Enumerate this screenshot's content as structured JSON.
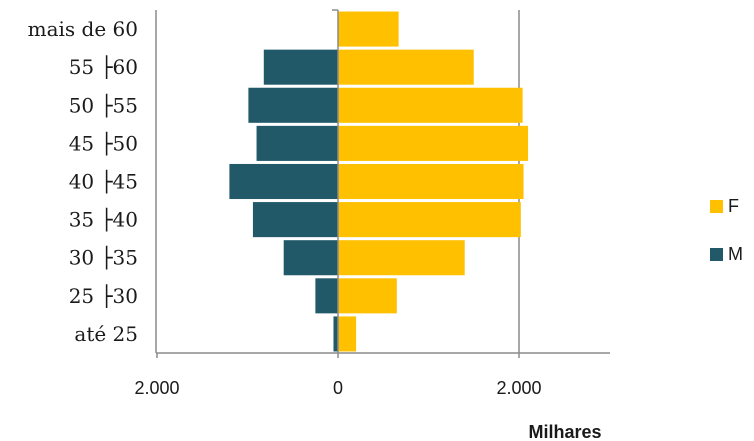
{
  "chart_data": {
    "type": "bar",
    "orientation": "horizontal",
    "categories": [
      "até 25",
      "25 ├30",
      "30 ├35",
      "35 ├40",
      "40 ├45",
      "45 ├50",
      "50 ├55",
      "55 ├60",
      "mais de 60"
    ],
    "series": [
      {
        "name": "F",
        "color": "#FFC000",
        "values": [
          200,
          650,
          1400,
          2020,
          2050,
          2100,
          2040,
          1500,
          670
        ]
      },
      {
        "name": "M",
        "color": "#215968",
        "values": [
          -50,
          -250,
          -600,
          -940,
          -1200,
          -900,
          -990,
          -820,
          0
        ]
      }
    ],
    "xlabel": "Milhares",
    "ylabel": "",
    "xlim": [
      -2000,
      3000
    ],
    "xticks": [
      -2000,
      0,
      2000
    ],
    "xtick_labels": [
      "2.000",
      "0",
      "2.000"
    ],
    "grid": "vertical",
    "legend": {
      "position": "right",
      "entries": [
        "F",
        "M"
      ]
    }
  }
}
